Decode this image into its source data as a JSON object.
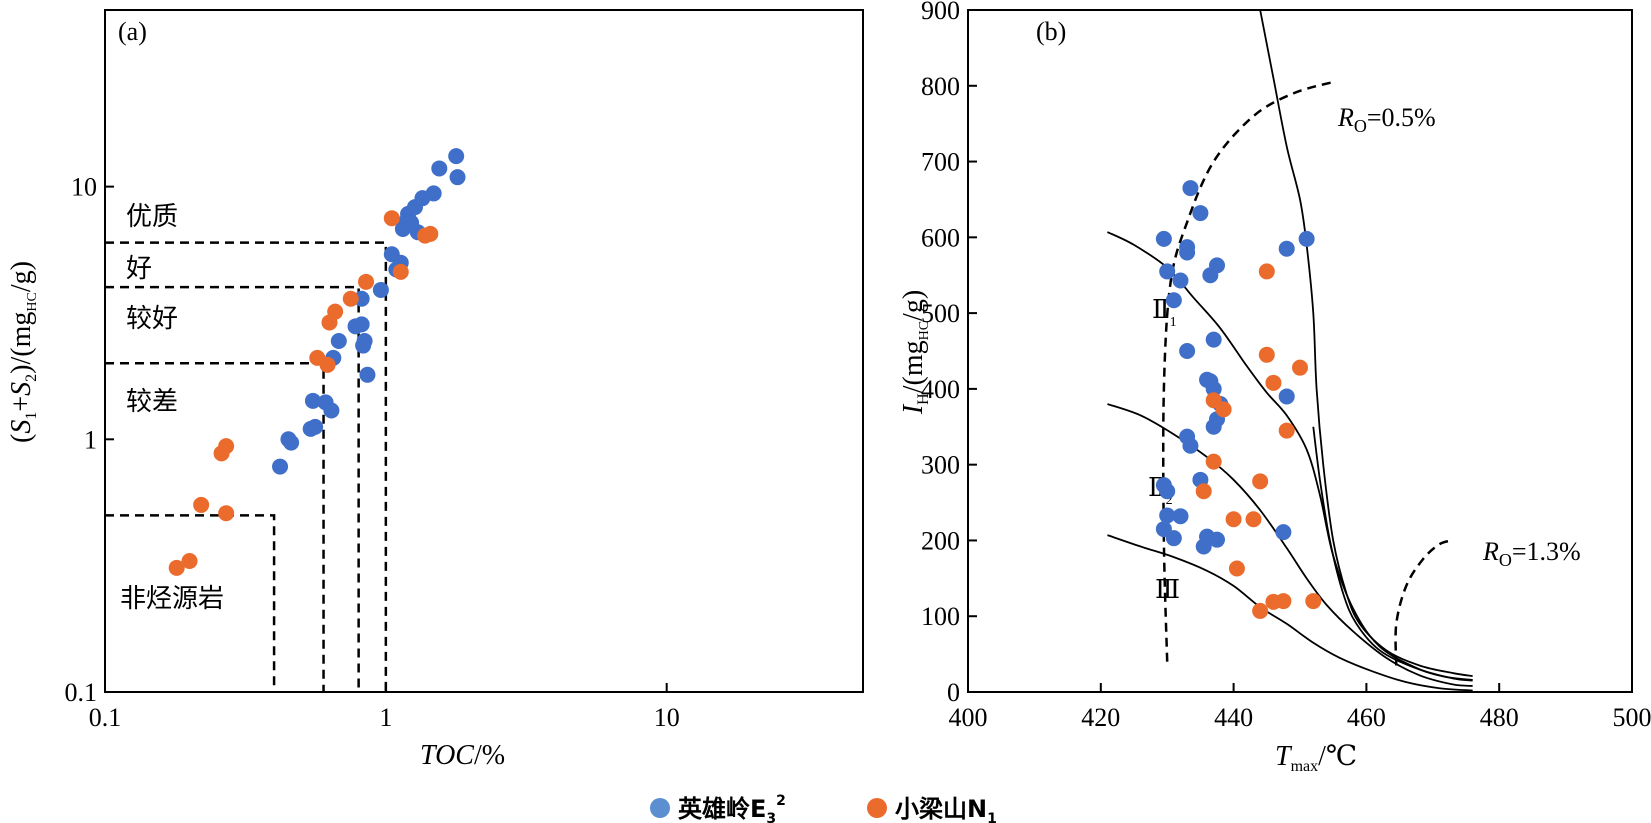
{
  "chart_data": [
    {
      "type": "scatter",
      "panel_label": "(a)",
      "xlabel": "TOC/%",
      "ylabel": "(S1+S2)/(mgHC/g)",
      "x_scale": "log",
      "y_scale": "log",
      "xlim": [
        0.1,
        50
      ],
      "ylim": [
        0.1,
        50
      ],
      "x_ticks": [
        "0.1",
        "1",
        "10"
      ],
      "y_ticks": [
        "0.1",
        "1",
        "10"
      ],
      "regions": [
        {
          "label": "优质",
          "toc_min": 1.0,
          "s_min": 6
        },
        {
          "label": "好",
          "toc_min": 1.0,
          "s_min": 4
        },
        {
          "label": "较好",
          "toc_min": 0.8,
          "s_min": 4
        },
        {
          "label": "较差",
          "toc_min": 0.6,
          "s_min": 2
        },
        {
          "label": "非烃源岩",
          "toc_max": 0.4,
          "s_max": 0.5
        }
      ],
      "boundaries": [
        {
          "toc": 1.0,
          "s": 6
        },
        {
          "toc": 0.8,
          "s": 4
        },
        {
          "toc": 0.6,
          "s": 2
        },
        {
          "toc": 0.4,
          "s": 0.5
        }
      ],
      "series": [
        {
          "name": "英雄岭E32",
          "color": "#3f6fc8",
          "points": [
            [
              0.42,
              0.78
            ],
            [
              0.45,
              1.0
            ],
            [
              0.46,
              0.97
            ],
            [
              0.54,
              1.1
            ],
            [
              0.55,
              1.42
            ],
            [
              0.56,
              1.12
            ],
            [
              0.61,
              1.4
            ],
            [
              0.64,
              1.3
            ],
            [
              0.65,
              2.1
            ],
            [
              0.68,
              2.45
            ],
            [
              0.78,
              2.8
            ],
            [
              0.82,
              3.6
            ],
            [
              0.82,
              2.85
            ],
            [
              0.83,
              2.35
            ],
            [
              0.84,
              2.45
            ],
            [
              0.86,
              1.8
            ],
            [
              0.96,
              3.9
            ],
            [
              1.05,
              5.4
            ],
            [
              1.09,
              4.7
            ],
            [
              1.13,
              5.0
            ],
            [
              1.15,
              6.8
            ],
            [
              1.17,
              7.2
            ],
            [
              1.2,
              7.8
            ],
            [
              1.23,
              7.2
            ],
            [
              1.27,
              8.3
            ],
            [
              1.3,
              6.6
            ],
            [
              1.35,
              9.0
            ],
            [
              1.48,
              9.4
            ],
            [
              1.55,
              11.8
            ],
            [
              1.78,
              13.2
            ],
            [
              1.8,
              10.9
            ]
          ]
        },
        {
          "name": "小梁山N1",
          "color": "#ea6b2b",
          "points": [
            [
              0.18,
              0.31
            ],
            [
              0.2,
              0.33
            ],
            [
              0.22,
              0.55
            ],
            [
              0.26,
              0.88
            ],
            [
              0.27,
              0.94
            ],
            [
              0.27,
              0.51
            ],
            [
              0.57,
              2.1
            ],
            [
              0.62,
              1.97
            ],
            [
              0.63,
              2.9
            ],
            [
              0.66,
              3.2
            ],
            [
              0.75,
              3.6
            ],
            [
              0.85,
              4.2
            ],
            [
              1.05,
              7.5
            ],
            [
              1.13,
              4.6
            ],
            [
              1.38,
              6.4
            ],
            [
              1.44,
              6.5
            ]
          ]
        }
      ]
    },
    {
      "type": "scatter",
      "panel_label": "(b)",
      "xlabel": "Tmax/℃",
      "ylabel": "IH/(mgHC/g)",
      "xlim": [
        400,
        500
      ],
      "ylim": [
        0,
        900
      ],
      "x_ticks": [
        "400",
        "420",
        "440",
        "460",
        "480",
        "500"
      ],
      "y_ticks": [
        "0",
        "100",
        "200",
        "300",
        "400",
        "500",
        "600",
        "700",
        "800",
        "900"
      ],
      "kerogen_labels": [
        {
          "label": "Ⅱ",
          "sub": "1"
        },
        {
          "label": "Ⅱ",
          "sub": "2"
        },
        {
          "label": "Ⅲ",
          "sub": ""
        }
      ],
      "ro_labels": [
        "RO=0.5%",
        "RO=1.3%"
      ],
      "curves": {
        "type_II1": [
          [
            421,
            607
          ],
          [
            425,
            590
          ],
          [
            430,
            560
          ],
          [
            434,
            520
          ],
          [
            438,
            480
          ],
          [
            442,
            430
          ],
          [
            445,
            395
          ],
          [
            448,
            365
          ],
          [
            451,
            320
          ],
          [
            453,
            260
          ],
          [
            455,
            180
          ],
          [
            458,
            110
          ],
          [
            462,
            60
          ],
          [
            468,
            30
          ],
          [
            473,
            18
          ],
          [
            476,
            15
          ]
        ],
        "type_II2": [
          [
            421,
            380
          ],
          [
            426,
            365
          ],
          [
            431,
            340
          ],
          [
            436,
            310
          ],
          [
            440,
            280
          ],
          [
            444,
            240
          ],
          [
            448,
            190
          ],
          [
            451,
            150
          ],
          [
            454,
            115
          ],
          [
            458,
            80
          ],
          [
            463,
            45
          ],
          [
            468,
            22
          ],
          [
            473,
            10
          ],
          [
            476,
            8
          ]
        ],
        "type_III": [
          [
            421,
            207
          ],
          [
            426,
            192
          ],
          [
            431,
            178
          ],
          [
            436,
            160
          ],
          [
            440,
            140
          ],
          [
            444,
            112
          ],
          [
            448,
            90
          ],
          [
            452,
            65
          ],
          [
            456,
            45
          ],
          [
            461,
            27
          ],
          [
            466,
            13
          ],
          [
            471,
            5
          ],
          [
            476,
            2
          ]
        ],
        "boundary_steep_1": [
          [
            444,
            900
          ],
          [
            446,
            810
          ],
          [
            448,
            720
          ],
          [
            450,
            650
          ],
          [
            451,
            590
          ],
          [
            452,
            500
          ],
          [
            452.5,
            400
          ],
          [
            453.5,
            300
          ],
          [
            455,
            200
          ],
          [
            457,
            130
          ],
          [
            459,
            90
          ],
          [
            463,
            55
          ],
          [
            468,
            35
          ],
          [
            473,
            25
          ],
          [
            476,
            21
          ]
        ],
        "boundary_steep_2": [
          [
            452,
            350
          ],
          [
            453,
            280
          ],
          [
            454.5,
            200
          ],
          [
            456.5,
            130
          ],
          [
            458.5,
            90
          ],
          [
            462,
            55
          ],
          [
            467,
            33
          ],
          [
            472,
            20
          ],
          [
            476,
            16
          ]
        ],
        "ro_05": [
          [
            430,
            40
          ],
          [
            429.5,
            200
          ],
          [
            429.5,
            400
          ],
          [
            430.5,
            540
          ],
          [
            433,
            620
          ],
          [
            437,
            700
          ],
          [
            443,
            760
          ],
          [
            449,
            790
          ],
          [
            455,
            805
          ]
        ],
        "ro_13": [
          [
            464.5,
            35
          ],
          [
            464.5,
            90
          ],
          [
            466,
            140
          ],
          [
            468.5,
            175
          ],
          [
            471,
            195
          ],
          [
            473,
            200
          ]
        ]
      },
      "series": [
        {
          "name": "英雄岭E32",
          "color": "#3f6fc8",
          "points": [
            [
              429.5,
              598
            ],
            [
              430,
              555
            ],
            [
              431,
              517
            ],
            [
              432,
              543
            ],
            [
              433,
              580
            ],
            [
              433,
              587
            ],
            [
              433.5,
              665
            ],
            [
              435,
              632
            ],
            [
              436.5,
              550
            ],
            [
              437.5,
              563
            ],
            [
              437,
              465
            ],
            [
              433,
              450
            ],
            [
              436,
              412
            ],
            [
              436.5,
              410
            ],
            [
              437,
              400
            ],
            [
              438,
              380
            ],
            [
              437,
              350
            ],
            [
              437.5,
              360
            ],
            [
              433,
              337
            ],
            [
              433.5,
              325
            ],
            [
              435,
              280
            ],
            [
              429.5,
              273
            ],
            [
              430,
              265
            ],
            [
              430,
              233
            ],
            [
              432,
              232
            ],
            [
              429.5,
              215
            ],
            [
              431,
              203
            ],
            [
              436,
              205
            ],
            [
              437.5,
              201
            ],
            [
              435.5,
              192
            ],
            [
              447.5,
              211
            ],
            [
              448,
              585
            ],
            [
              451,
              598
            ],
            [
              448,
              390
            ]
          ]
        },
        {
          "name": "小梁山N1",
          "color": "#ea6b2b",
          "points": [
            [
              445,
              555
            ],
            [
              445,
              445
            ],
            [
              446,
              408
            ],
            [
              450,
              428
            ],
            [
              437,
              385
            ],
            [
              438.5,
              373
            ],
            [
              448,
              345
            ],
            [
              437,
              304
            ],
            [
              444,
              278
            ],
            [
              435.5,
              265
            ],
            [
              440,
              228
            ],
            [
              443,
              228
            ],
            [
              440.5,
              163
            ],
            [
              444,
              107
            ],
            [
              446,
              119
            ],
            [
              447.5,
              120
            ],
            [
              452,
              120
            ]
          ]
        }
      ]
    }
  ],
  "legend": {
    "items": [
      {
        "label": "英雄岭E",
        "sub": "3",
        "sup": "2",
        "color": "#5b8fd0"
      },
      {
        "label": "小梁山N",
        "sub": "1",
        "sup": "",
        "color": "#ea6b2b"
      }
    ]
  }
}
